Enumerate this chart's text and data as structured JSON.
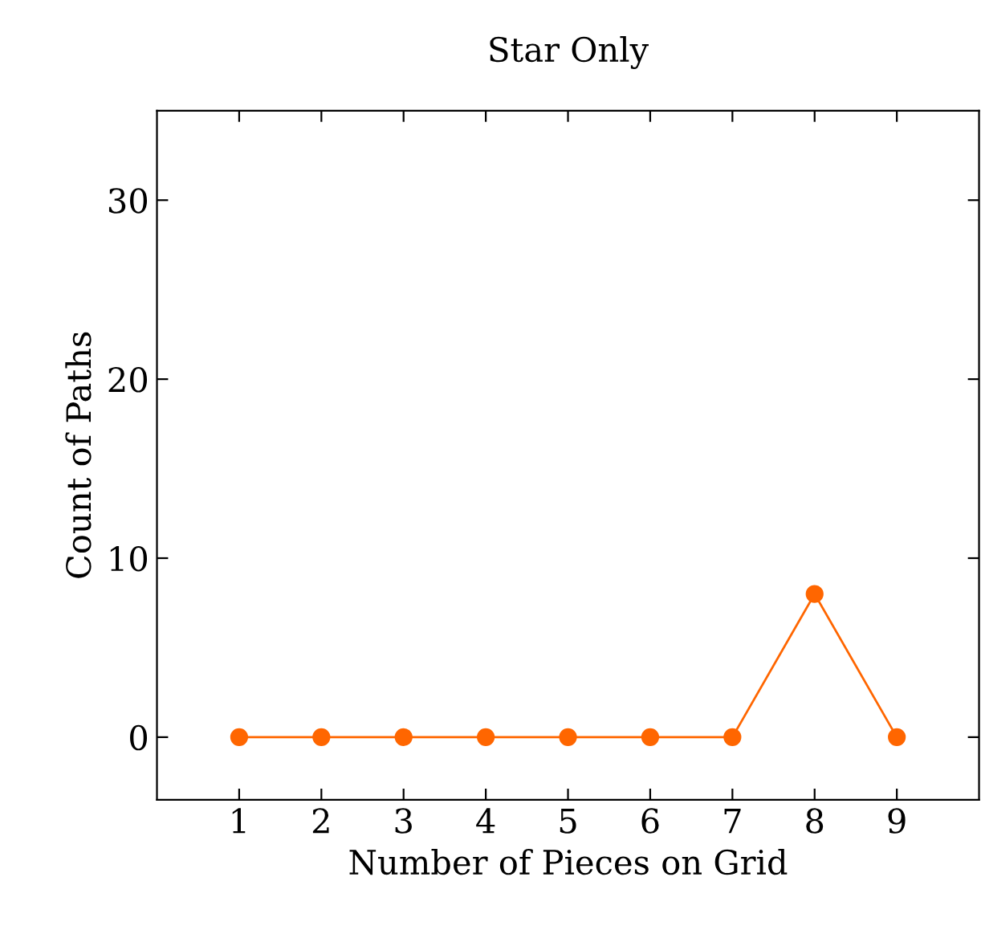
{
  "chart_data": {
    "type": "line",
    "title": "Star Only",
    "xlabel": "Number of Pieces on Grid",
    "ylabel": "Count of Paths",
    "x": [
      1,
      2,
      3,
      4,
      5,
      6,
      7,
      8,
      9
    ],
    "series": [
      {
        "color": "#ff6600",
        "values": [
          0,
          0,
          0,
          0,
          0,
          0,
          0,
          8,
          0
        ]
      }
    ],
    "xlim": [
      0,
      10
    ],
    "xticks": [
      1,
      2,
      3,
      4,
      5,
      6,
      7,
      8,
      9
    ],
    "ylim": [
      -3.5,
      35
    ],
    "yticks": [
      0,
      10,
      20,
      30
    ],
    "grid": false,
    "marker": "circle",
    "line_style": "solid"
  }
}
